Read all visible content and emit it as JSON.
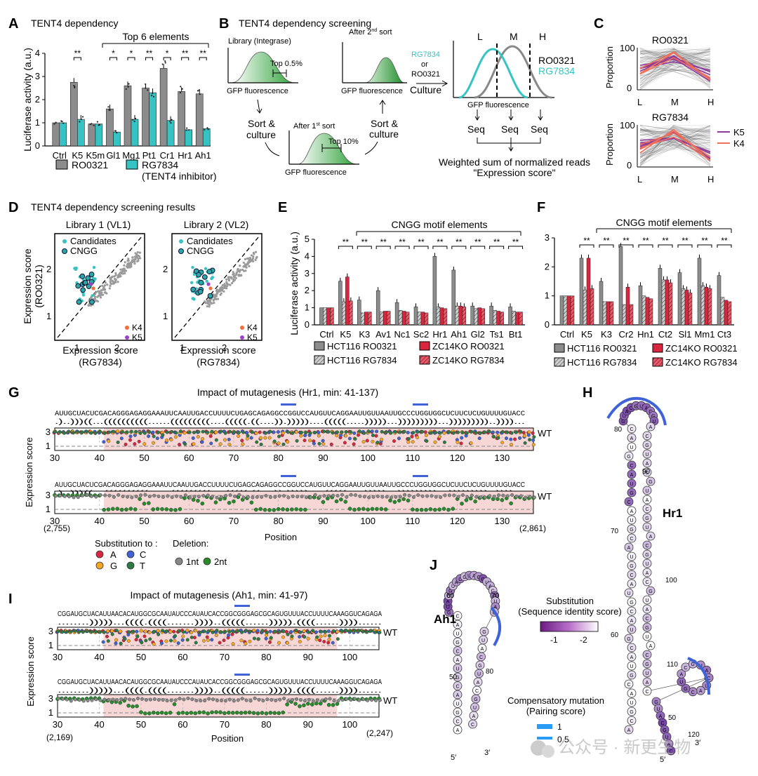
{
  "panels": {
    "A": {
      "letter": "A",
      "title": "TENT4 dependency",
      "bracket_label": "Top 6 elements",
      "ylabel": "Luciferase activity (a.u.)",
      "legend": [
        "RO0321",
        "RG7834",
        "(TENT4 inhibitor)"
      ],
      "sig": [
        "**",
        "**",
        "**",
        "*",
        "*",
        "*",
        "**",
        "**",
        "**"
      ]
    },
    "B": {
      "letter": "B",
      "title": "TENT4 dependency screening",
      "library_label": "Library (Integrase)",
      "top05": "Top 0.5%",
      "top10": "Top 10%",
      "gfp": "GFP fluorescence",
      "after2": "After 2",
      "after1": "After 1",
      "nd": "nd",
      "st": "st",
      "sort_word": "sort",
      "sort_culture_1": "Sort &",
      "sort_culture_2": "culture",
      "drug_rg": "RG7834",
      "drug_or": "or",
      "drug_ro": "RO0321",
      "culture": "Culture",
      "bins": [
        "L",
        "M",
        "H"
      ],
      "seq": "Seq",
      "weighted_1": "Weighted sum of normalized reads",
      "weighted_2": "\"Expression score\""
    },
    "C": {
      "letter": "C",
      "ylabel": "Proportion",
      "top_title": "RO0321",
      "bottom_title": "RG7834",
      "ticks_y": [
        "100",
        "0"
      ],
      "ticks_x": [
        "L",
        "M",
        "H"
      ],
      "legend": [
        "K5",
        "K4"
      ]
    },
    "D": {
      "letter": "D",
      "title": "TENT4 dependency screening results",
      "lib1": "Library 1 (VL1)",
      "lib2": "Library 2 (VL2)",
      "ylabel": "Expression score",
      "ylabel2": "(RO0321)",
      "xlabel": "Expression score",
      "xlabel2": "(RG7834)",
      "legend": [
        "Candidates",
        "CNGG",
        "K4",
        "K5"
      ],
      "yticks": [
        "2",
        "1"
      ],
      "xticks": [
        "1",
        "2"
      ]
    },
    "E": {
      "letter": "E",
      "bracket_label": "CNGG motif elements",
      "ylabel": "Luciferase activity (a.u.)",
      "yticks": [
        "5",
        "4",
        "3",
        "2",
        "1",
        "0"
      ],
      "legend": [
        "HCT116 RO0321",
        "ZC14KO RO0321",
        "HCT116 RG7834",
        "ZC14KO RG7834"
      ]
    },
    "F": {
      "letter": "F",
      "bracket_label": "CNGG motif elements",
      "yticks": [
        "3",
        "2",
        "1",
        "0"
      ],
      "legend": [
        "HCT116 RO0321",
        "ZC14KO RO0321",
        "HCT116 RG7834",
        "ZC14KO RG7834"
      ]
    },
    "G": {
      "letter": "G",
      "title": "Impact of mutagenesis (Hr1, min: 41-137)",
      "sequence": "AUUGCUACUCGACAGGGAGAGGAAAUUCAAUUGACCUUUUCUGAGCAGAGGCCGGUCCAUGUUCAGGAAUUGUUAAUUGCCCUGGUGGCUCUUCUCUGUUUUGUACC",
      "structure": ".)..)))((...((((((((((......(((((((((....(((((.((....)).)))))....(((((.....)))))...)))))))))...)))))))))..))))...",
      "wt": "WT",
      "ylabel": "Expression score",
      "xlabel": "Position",
      "yticks": [
        "3",
        "1"
      ],
      "xticks": [
        "30",
        "40",
        "50",
        "60",
        "70",
        "80",
        "90",
        "100",
        "110",
        "120",
        "130"
      ],
      "left_coord": "(2,755)",
      "right_coord": "(2,861)",
      "subst_label": "Substitution to :",
      "deletion_label": "Deletion:",
      "nt": [
        "A",
        "C",
        "G",
        "T"
      ],
      "del": [
        "1nt",
        "2nt"
      ]
    },
    "H": {
      "letter": "H",
      "name": "Hr1",
      "nums": [
        "80",
        "90",
        "70",
        "100",
        "60",
        "110",
        "50",
        "120"
      ],
      "end5": "5′",
      "end3": "3′"
    },
    "I": {
      "letter": "I",
      "title": "Impact of mutagenesis (Ah1, min: 41-97)",
      "sequence": "CGGAUGCUACAUUAACACAUGGCGCAAUAUCCCAUAUCACCGGCGGGAGCGCAGUGUUUACCUUUUCAAAGGUCAGAGA",
      "structure": "........)))))...((((.((((.......))))..(((((......))))).((((......))))......",
      "wt": "WT",
      "ylabel": "Expression score",
      "xlabel": "Position",
      "yticks": [
        "3",
        "1"
      ],
      "xticks": [
        "30",
        "40",
        "50",
        "60",
        "70",
        "80",
        "90",
        "100"
      ],
      "left_coord": "(2,169)",
      "right_coord": "(2,247)"
    },
    "J": {
      "letter": "J",
      "name": "Ah1",
      "nums": [
        "60",
        "70",
        "50",
        "80"
      ],
      "end5": "5′",
      "end3": "3′",
      "subst_title_1": "Substitution",
      "subst_title_2": "(Sequence identity score)",
      "subst_ticks": [
        "-1",
        "-2"
      ],
      "comp_title_1": "Compensatory mutation",
      "comp_title_2": "(Pairing score)",
      "comp_ticks": [
        "1",
        "0.5"
      ]
    }
  },
  "watermark": "公众号 · 新更生物",
  "colors": {
    "gray": "#8c8c8c",
    "teal": "#35c3c3",
    "red": "#d7263d",
    "green": "#3c9a3c",
    "purple": "#8e3b9c",
    "blue_arc": "#3f63d6",
    "pink_band": "#f7d6d6"
  },
  "chart_data": [
    {
      "panel": "A",
      "type": "bar",
      "categories": [
        "Ctrl",
        "K5",
        "K5m",
        "Gl1",
        "Mg1",
        "Pt1",
        "Cr1",
        "Hr1",
        "Ah1"
      ],
      "series": [
        {
          "name": "RO0321",
          "values": [
            1.0,
            2.75,
            0.95,
            1.6,
            2.6,
            2.5,
            3.35,
            2.35,
            2.25
          ]
        },
        {
          "name": "RG7834",
          "values": [
            1.0,
            1.15,
            0.95,
            0.6,
            1.15,
            2.3,
            1.1,
            0.7,
            0.75
          ]
        }
      ],
      "ylabel": "Luciferase activity (a.u.)",
      "ylim": [
        0,
        4
      ],
      "yticks": [
        0,
        1,
        2,
        3,
        4
      ]
    },
    {
      "panel": "E",
      "type": "bar",
      "categories": [
        "Ctrl",
        "K5",
        "K3",
        "Av1",
        "Nc1",
        "Sc2",
        "Hr1",
        "Ah1",
        "Gl2",
        "Ts1",
        "Bt1"
      ],
      "series": [
        {
          "name": "HCT116 RO0321",
          "values": [
            1.0,
            2.55,
            1.45,
            2.0,
            1.3,
            1.05,
            4.0,
            3.2,
            1.1,
            1.1,
            1.05
          ]
        },
        {
          "name": "HCT116 RG7834",
          "values": [
            1.0,
            1.35,
            0.7,
            0.75,
            0.85,
            0.75,
            1.05,
            1.1,
            0.95,
            0.85,
            0.8
          ]
        },
        {
          "name": "ZC14KO RO0321",
          "values": [
            1.0,
            2.8,
            0.75,
            0.8,
            0.8,
            0.75,
            1.0,
            1.1,
            1.0,
            0.8,
            0.75
          ]
        },
        {
          "name": "ZC14KO RG7834",
          "values": [
            1.0,
            1.4,
            0.75,
            0.8,
            0.75,
            0.7,
            0.95,
            1.05,
            0.95,
            0.75,
            0.75
          ]
        }
      ],
      "ylabel": "Luciferase activity (a.u.)",
      "ylim": [
        0,
        5
      ]
    },
    {
      "panel": "F",
      "type": "bar",
      "categories": [
        "Ctrl",
        "K5",
        "K3",
        "Cr2",
        "Hn1",
        "Ct2",
        "Sl1",
        "Mm1",
        "Ct3"
      ],
      "series": [
        {
          "name": "HCT116 RO0321",
          "values": [
            1.0,
            2.3,
            1.5,
            2.7,
            1.35,
            1.95,
            1.8,
            2.3,
            1.7
          ]
        },
        {
          "name": "HCT116 RG7834",
          "values": [
            1.0,
            1.2,
            0.8,
            0.7,
            1.0,
            1.55,
            1.25,
            1.35,
            0.95
          ]
        },
        {
          "name": "ZC14KO RO0321",
          "values": [
            1.0,
            2.3,
            0.8,
            1.3,
            0.95,
            1.55,
            1.2,
            1.3,
            0.85
          ]
        },
        {
          "name": "ZC14KO RG7834",
          "values": [
            1.0,
            1.25,
            0.8,
            0.7,
            0.9,
            1.45,
            1.1,
            1.25,
            0.8
          ]
        }
      ],
      "ylim": [
        0,
        3
      ]
    }
  ]
}
